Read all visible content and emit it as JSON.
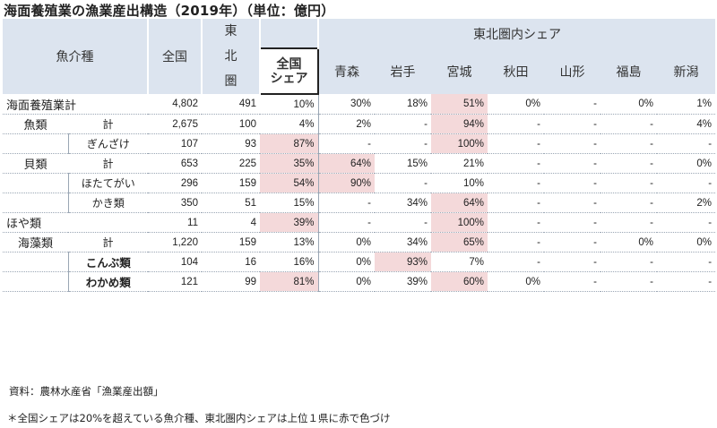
{
  "title": "海面養殖業の漁業産出構造（2019年）（単位：億円）",
  "header": {
    "category": "魚介種",
    "national_total": "全国",
    "tohoku_lines": [
      "東",
      "北",
      "圏"
    ],
    "national_share_lines": [
      "全国",
      "シェア"
    ],
    "tohoku_share": "東北圏内シェア",
    "prefectures": [
      "青森",
      "岩手",
      "宮城",
      "秋田",
      "山形",
      "福島",
      "新潟"
    ]
  },
  "rows": [
    {
      "label": "海面養殖業計",
      "sub": "",
      "national": "4,802",
      "tohoku": "491",
      "share": "10%",
      "prefs": [
        "30%",
        "18%",
        "51%",
        "0%",
        "-",
        "0%",
        "1%"
      ]
    },
    {
      "label": "魚類",
      "sub": "計",
      "national": "2,675",
      "tohoku": "100",
      "share": "4%",
      "prefs": [
        "2%",
        "-",
        "94%",
        "-",
        "-",
        "-",
        "4%"
      ]
    },
    {
      "label": "",
      "sub": "ぎんざけ",
      "national": "107",
      "tohoku": "93",
      "share": "87%",
      "prefs": [
        "-",
        "-",
        "100%",
        "-",
        "-",
        "-",
        "-"
      ]
    },
    {
      "label": "貝類",
      "sub": "計",
      "national": "653",
      "tohoku": "225",
      "share": "35%",
      "prefs": [
        "64%",
        "15%",
        "21%",
        "-",
        "-",
        "-",
        "0%"
      ]
    },
    {
      "label": "",
      "sub": "ほたてがい",
      "national": "296",
      "tohoku": "159",
      "share": "54%",
      "prefs": [
        "90%",
        "-",
        "10%",
        "-",
        "-",
        "-",
        "-"
      ]
    },
    {
      "label": "",
      "sub": "かき類",
      "national": "350",
      "tohoku": "51",
      "share": "15%",
      "prefs": [
        "-",
        "34%",
        "64%",
        "-",
        "-",
        "-",
        "2%"
      ]
    },
    {
      "label": "ほや類",
      "sub": "",
      "national": "11",
      "tohoku": "4",
      "share": "39%",
      "prefs": [
        "-",
        "-",
        "100%",
        "-",
        "-",
        "-",
        "-"
      ]
    },
    {
      "label": "海藻類",
      "sub": "計",
      "national": "1,220",
      "tohoku": "159",
      "share": "13%",
      "prefs": [
        "0%",
        "34%",
        "65%",
        "-",
        "-",
        "0%",
        "0%"
      ]
    },
    {
      "label": "",
      "sub": "こんぶ類",
      "national": "104",
      "tohoku": "16",
      "share": "16%",
      "prefs": [
        "0%",
        "93%",
        "7%",
        "-",
        "-",
        "-",
        "-"
      ]
    },
    {
      "label": "",
      "sub": "わかめ類",
      "national": "121",
      "tohoku": "99",
      "share": "81%",
      "prefs": [
        "0%",
        "39%",
        "60%",
        "0%",
        "-",
        "-",
        "-"
      ]
    }
  ],
  "notes": {
    "source": "資料：農林水産省「漁業産出額」",
    "footnote": "＊全国シェアは20%を超えている魚介種、東北圏内シェアは上位１県に赤で色づけ"
  },
  "colors": {
    "header_bg": "#dce4ef",
    "highlight": "#f4d9da"
  }
}
